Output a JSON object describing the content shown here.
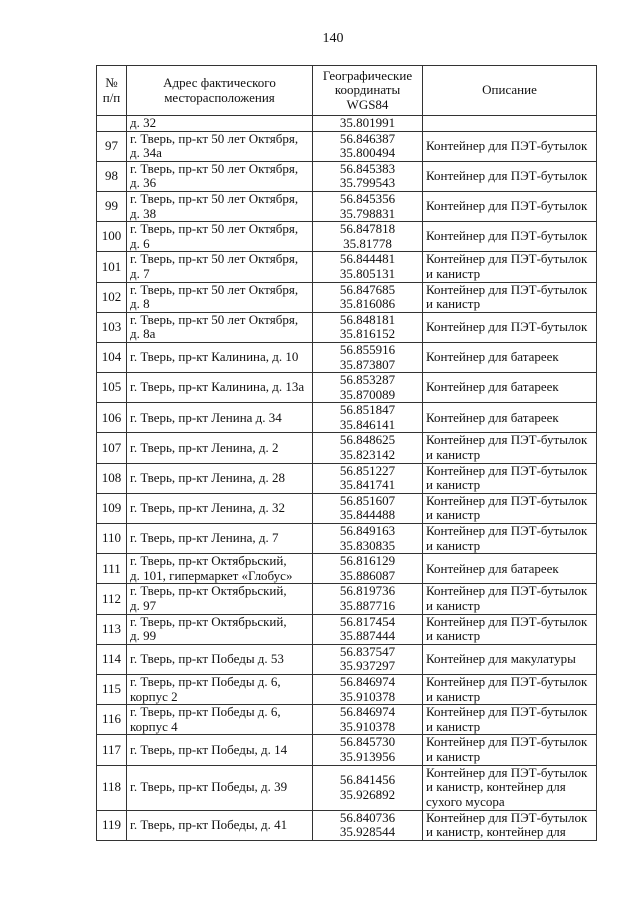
{
  "page_number": "140",
  "table": {
    "headers": {
      "num": [
        "№",
        "п/п"
      ],
      "address": [
        "Адрес фактического",
        "месторасположения"
      ],
      "coords": [
        "Географические",
        "координаты",
        "WGS84"
      ],
      "description": "Описание"
    },
    "continuation": {
      "address": "д. 32",
      "coords": [
        "35.801991"
      ],
      "description": []
    },
    "rows": [
      {
        "num": "97",
        "address": [
          "г. Тверь, пр-кт 50 лет Октября,",
          "д. 34а"
        ],
        "coords": [
          "56.846387",
          "35.800494"
        ],
        "description": [
          "Контейнер для ПЭТ-бутылок"
        ]
      },
      {
        "num": "98",
        "address": [
          "г. Тверь, пр-кт 50 лет Октября,",
          "д. 36"
        ],
        "coords": [
          "56.845383",
          "35.799543"
        ],
        "description": [
          "Контейнер для ПЭТ-бутылок"
        ]
      },
      {
        "num": "99",
        "address": [
          "г. Тверь, пр-кт 50 лет Октября,",
          "д. 38"
        ],
        "coords": [
          "56.845356",
          "35.798831"
        ],
        "description": [
          "Контейнер для ПЭТ-бутылок"
        ]
      },
      {
        "num": "100",
        "address": [
          "г. Тверь, пр-кт 50 лет Октября,",
          "д. 6"
        ],
        "coords": [
          "56.847818",
          "35.81778"
        ],
        "description": [
          "Контейнер для ПЭТ-бутылок"
        ]
      },
      {
        "num": "101",
        "address": [
          "г. Тверь, пр-кт 50 лет Октября,",
          "д. 7"
        ],
        "coords": [
          "56.844481",
          "35.805131"
        ],
        "description": [
          "Контейнер для ПЭТ-бутылок",
          "и канистр"
        ]
      },
      {
        "num": "102",
        "address": [
          "г. Тверь, пр-кт 50 лет Октября,",
          "д. 8"
        ],
        "coords": [
          "56.847685",
          "35.816086"
        ],
        "description": [
          "Контейнер для ПЭТ-бутылок",
          "и канистр"
        ]
      },
      {
        "num": "103",
        "address": [
          "г. Тверь, пр-кт 50 лет Октября,",
          "д. 8а"
        ],
        "coords": [
          "56.848181",
          "35.816152"
        ],
        "description": [
          "Контейнер для ПЭТ-бутылок"
        ]
      },
      {
        "num": "104",
        "address": [
          "г. Тверь, пр-кт Калинина, д. 10"
        ],
        "coords": [
          "56.855916",
          "35.873807"
        ],
        "description": [
          "Контейнер для батареек"
        ]
      },
      {
        "num": "105",
        "address": [
          "г. Тверь, пр-кт Калинина, д. 13а"
        ],
        "coords": [
          "56.853287",
          "35.870089"
        ],
        "description": [
          "Контейнер для батареек"
        ]
      },
      {
        "num": "106",
        "address": [
          "г. Тверь, пр-кт Ленина д. 34"
        ],
        "coords": [
          "56.851847",
          "35.846141"
        ],
        "description": [
          "Контейнер для батареек"
        ]
      },
      {
        "num": "107",
        "address": [
          "г. Тверь, пр-кт Ленина, д. 2"
        ],
        "coords": [
          "56.848625",
          "35.823142"
        ],
        "description": [
          "Контейнер для ПЭТ-бутылок",
          "и канистр"
        ]
      },
      {
        "num": "108",
        "address": [
          "г. Тверь, пр-кт Ленина, д. 28"
        ],
        "coords": [
          "56.851227",
          "35.841741"
        ],
        "description": [
          "Контейнер для ПЭТ-бутылок",
          "и канистр"
        ]
      },
      {
        "num": "109",
        "address": [
          "г. Тверь, пр-кт Ленина, д. 32"
        ],
        "coords": [
          "56.851607",
          "35.844488"
        ],
        "description": [
          "Контейнер для ПЭТ-бутылок",
          "и канистр"
        ]
      },
      {
        "num": "110",
        "address": [
          "г. Тверь, пр-кт Ленина, д. 7"
        ],
        "coords": [
          "56.849163",
          "35.830835"
        ],
        "description": [
          "Контейнер для ПЭТ-бутылок",
          "и канистр"
        ]
      },
      {
        "num": "111",
        "address": [
          "г. Тверь, пр-кт Октябрьский,",
          "д. 101, гипермаркет «Глобус»"
        ],
        "coords": [
          "56.816129",
          "35.886087"
        ],
        "description": [
          "Контейнер для батареек"
        ]
      },
      {
        "num": "112",
        "address": [
          "г. Тверь, пр-кт Октябрьский,",
          "д. 97"
        ],
        "coords": [
          "56.819736",
          "35.887716"
        ],
        "description": [
          "Контейнер для ПЭТ-бутылок",
          "и канистр"
        ]
      },
      {
        "num": "113",
        "address": [
          "г. Тверь, пр-кт Октябрьский,",
          "д. 99"
        ],
        "coords": [
          "56.817454",
          "35.887444"
        ],
        "description": [
          "Контейнер для ПЭТ-бутылок",
          "и канистр"
        ]
      },
      {
        "num": "114",
        "address": [
          "г. Тверь, пр-кт Победы д. 53"
        ],
        "coords": [
          "56.837547",
          "35.937297"
        ],
        "description": [
          "Контейнер для макулатуры"
        ]
      },
      {
        "num": "115",
        "address": [
          "г. Тверь, пр-кт Победы д. 6,",
          "корпус 2"
        ],
        "coords": [
          "56.846974",
          "35.910378"
        ],
        "description": [
          "Контейнер для ПЭТ-бутылок",
          "и канистр"
        ]
      },
      {
        "num": "116",
        "address": [
          "г. Тверь, пр-кт Победы д. 6,",
          "корпус 4"
        ],
        "coords": [
          "56.846974",
          "35.910378"
        ],
        "description": [
          "Контейнер для ПЭТ-бутылок",
          "и канистр"
        ]
      },
      {
        "num": "117",
        "address": [
          "г. Тверь, пр-кт Победы, д. 14"
        ],
        "coords": [
          "56.845730",
          "35.913956"
        ],
        "description": [
          "Контейнер для ПЭТ-бутылок",
          "и канистр"
        ]
      },
      {
        "num": "118",
        "address": [
          "г. Тверь, пр-кт Победы, д. 39"
        ],
        "coords": [
          "56.841456",
          "35.926892"
        ],
        "description": [
          "Контейнер для ПЭТ-бутылок",
          "и канистр, контейнер для",
          "сухого мусора"
        ]
      },
      {
        "num": "119",
        "address": [
          "г. Тверь, пр-кт Победы, д. 41"
        ],
        "coords": [
          "56.840736",
          "35.928544"
        ],
        "description": [
          "Контейнер для ПЭТ-бутылок",
          "и канистр, контейнер для"
        ]
      }
    ]
  }
}
